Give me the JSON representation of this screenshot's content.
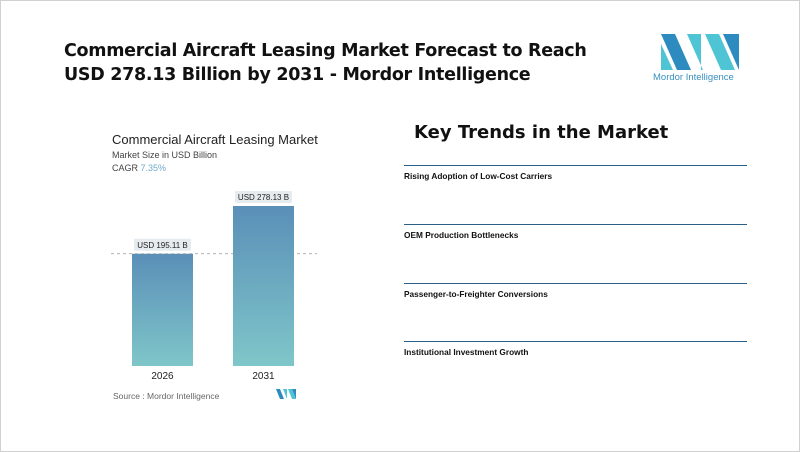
{
  "header": {
    "title": "Commercial Aircraft Leasing Market Forecast to Reach USD 278.13 Billion by 2031 - Mordor Intelligence",
    "logo_text": "Mordor Intelligence"
  },
  "chart_data": {
    "type": "bar",
    "title": "Commercial Aircraft Leasing Market",
    "subtitle": "Market Size in USD Billion",
    "cagr_label": "CAGR",
    "cagr_value": "7.35%",
    "categories": [
      "2026",
      "2031"
    ],
    "values": [
      195.11,
      278.13
    ],
    "data_labels": [
      "USD 195.11 B",
      "USD 278.13 B"
    ],
    "ylim": [
      0,
      300
    ],
    "grid": false,
    "colors": {
      "top": "#5a8fb8",
      "bottom": "#7fc6c9"
    },
    "source": "Source :  Mordor Intelligence"
  },
  "trends": {
    "title": "Key Trends in the Market",
    "items": [
      "Rising Adoption of Low-Cost Carriers",
      "OEM Production Bottlenecks",
      "Passenger-to-Freighter Conversions",
      "Institutional Investment Growth"
    ]
  }
}
